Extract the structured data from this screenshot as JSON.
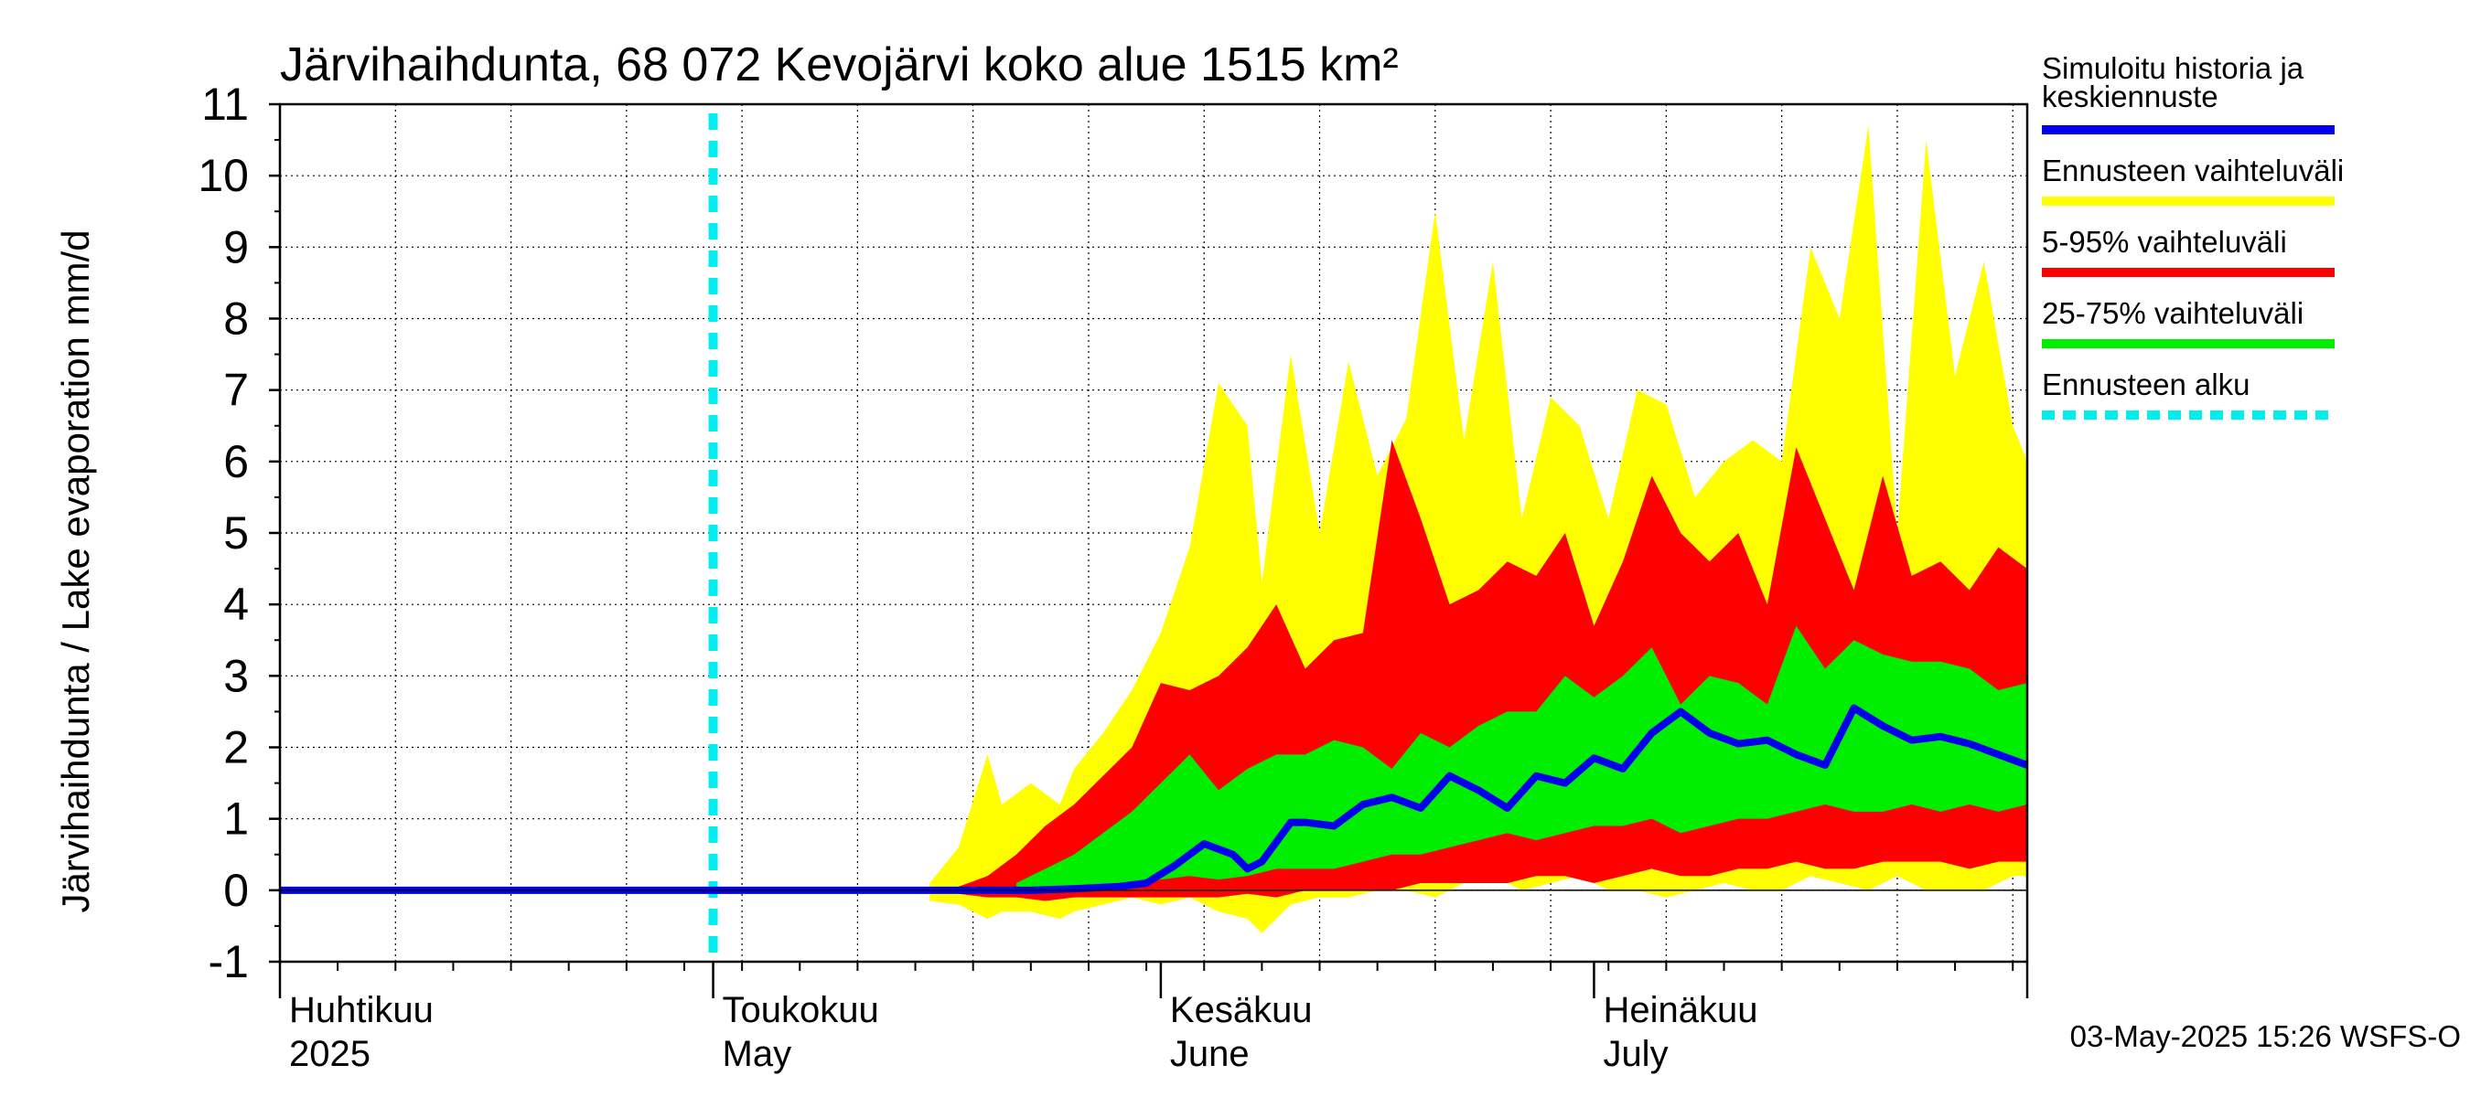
{
  "chart_data": {
    "type": "area",
    "title": "Järvihaihdunta, 68 072 Kevojärvi koko alue 1515 km²",
    "ylabel": "Järvihaihdunta / Lake evaporation   mm/d",
    "xlabel": "",
    "ylim": [
      -1,
      11
    ],
    "yticks": [
      -1,
      0,
      1,
      2,
      3,
      4,
      5,
      6,
      7,
      8,
      9,
      10,
      11
    ],
    "grid": true,
    "x_start": "2025-04-01",
    "x_end": "2025-07-31",
    "x_unit": "day of year 2025",
    "x_range": [
      91,
      212
    ],
    "forecast_start_doy": 121,
    "month_ticks": [
      {
        "doy": 91,
        "fi": "Huhtikuu",
        "en": "2025"
      },
      {
        "doy": 121,
        "fi": "Toukokuu",
        "en": "May"
      },
      {
        "doy": 152,
        "fi": "Kesäkuu",
        "en": "June"
      },
      {
        "doy": 182,
        "fi": "Heinäkuu",
        "en": "July"
      }
    ],
    "legend": [
      {
        "label": "Simuloitu historia ja keskiennuste",
        "line1": "Simuloitu historia ja",
        "line2": "keskiennuste",
        "color": "#0000ee",
        "style": "solid"
      },
      {
        "label": "Ennusteen vaihteluväli",
        "color": "#ffff00",
        "style": "solid"
      },
      {
        "label": "5-95% vaihteluväli",
        "color": "#ff0000",
        "style": "solid"
      },
      {
        "label": "25-75% vaihteluväli",
        "color": "#00ee00",
        "style": "solid"
      },
      {
        "label": "Ennusteen alku",
        "color": "#00eeee",
        "style": "dashed"
      }
    ],
    "series": [
      {
        "name": "Ennusteen vaihteluväli",
        "color": "#ffff00",
        "doy": [
          136,
          138,
          140,
          141,
          143,
          145,
          146,
          148,
          150,
          152,
          154,
          156,
          158,
          159,
          161,
          163,
          165,
          167,
          169,
          171,
          173,
          175,
          177,
          179,
          181,
          183,
          185,
          187,
          189,
          191,
          193,
          195,
          197,
          199,
          201,
          203,
          205,
          207,
          209,
          211,
          212
        ],
        "upper": [
          0.1,
          0.6,
          1.9,
          1.2,
          1.5,
          1.2,
          1.7,
          2.2,
          2.8,
          3.6,
          4.8,
          7.1,
          6.5,
          4.3,
          7.5,
          5.0,
          7.4,
          5.8,
          6.6,
          9.5,
          6.3,
          8.8,
          5.2,
          6.9,
          6.5,
          5.2,
          7.0,
          6.8,
          5.5,
          6.0,
          6.3,
          6.0,
          9.0,
          8.0,
          10.7,
          5.0,
          10.5,
          7.2,
          8.8,
          6.5,
          6.0
        ],
        "lower": [
          -0.15,
          -0.2,
          -0.4,
          -0.3,
          -0.3,
          -0.4,
          -0.3,
          -0.2,
          -0.1,
          -0.2,
          -0.1,
          -0.3,
          -0.4,
          -0.6,
          -0.2,
          -0.1,
          -0.1,
          0.0,
          0.0,
          -0.1,
          0.1,
          0.2,
          0.0,
          0.1,
          0.2,
          0.0,
          0.0,
          -0.1,
          0.0,
          0.1,
          0.0,
          0.0,
          0.2,
          0.1,
          0.0,
          0.2,
          0.0,
          0.0,
          0.0,
          0.2,
          0.2
        ]
      },
      {
        "name": "5-95% vaihteluväli",
        "color": "#ff0000",
        "doy": [
          138,
          140,
          142,
          144,
          146,
          148,
          150,
          152,
          154,
          156,
          158,
          160,
          162,
          164,
          166,
          168,
          170,
          172,
          174,
          176,
          178,
          180,
          182,
          184,
          186,
          188,
          190,
          192,
          194,
          196,
          198,
          200,
          202,
          204,
          206,
          208,
          210,
          212
        ],
        "upper": [
          0.05,
          0.2,
          0.5,
          0.9,
          1.2,
          1.6,
          2.0,
          2.9,
          2.8,
          3.0,
          3.4,
          4.0,
          3.1,
          3.5,
          3.6,
          6.3,
          5.2,
          4.0,
          4.2,
          4.6,
          4.4,
          5.0,
          3.7,
          4.6,
          5.8,
          5.0,
          4.6,
          5.0,
          4.0,
          6.2,
          5.2,
          4.2,
          5.8,
          4.4,
          4.6,
          4.2,
          4.8,
          4.5
        ],
        "lower": [
          -0.05,
          -0.1,
          -0.1,
          -0.15,
          -0.1,
          -0.1,
          -0.1,
          -0.1,
          -0.1,
          -0.1,
          -0.05,
          -0.1,
          0.0,
          0.0,
          0.0,
          0.0,
          0.1,
          0.1,
          0.1,
          0.1,
          0.2,
          0.2,
          0.1,
          0.2,
          0.3,
          0.2,
          0.2,
          0.3,
          0.3,
          0.4,
          0.3,
          0.3,
          0.4,
          0.4,
          0.4,
          0.3,
          0.4,
          0.4
        ]
      },
      {
        "name": "25-75% vaihteluväli",
        "color": "#00ee00",
        "doy": [
          142,
          144,
          146,
          148,
          150,
          152,
          154,
          156,
          158,
          160,
          162,
          164,
          166,
          168,
          170,
          172,
          174,
          176,
          178,
          180,
          182,
          184,
          186,
          188,
          190,
          192,
          194,
          196,
          198,
          200,
          202,
          204,
          206,
          208,
          210,
          212
        ],
        "upper": [
          0.1,
          0.3,
          0.5,
          0.8,
          1.1,
          1.5,
          1.9,
          1.4,
          1.7,
          1.9,
          1.9,
          2.1,
          2.0,
          1.7,
          2.2,
          2.0,
          2.3,
          2.5,
          2.5,
          3.0,
          2.7,
          3.0,
          3.4,
          2.6,
          3.0,
          2.9,
          2.6,
          3.7,
          3.1,
          3.5,
          3.3,
          3.2,
          3.2,
          3.1,
          2.8,
          2.9
        ],
        "lower": [
          0.0,
          0.0,
          0.0,
          0.05,
          0.1,
          0.15,
          0.2,
          0.15,
          0.2,
          0.3,
          0.3,
          0.3,
          0.4,
          0.5,
          0.5,
          0.6,
          0.7,
          0.8,
          0.7,
          0.8,
          0.9,
          0.9,
          1.0,
          0.8,
          0.9,
          1.0,
          1.0,
          1.1,
          1.2,
          1.1,
          1.1,
          1.2,
          1.1,
          1.2,
          1.1,
          1.2
        ]
      },
      {
        "name": "Simuloitu historia ja keskiennuste",
        "color": "#0000ee",
        "doy": [
          91,
          100,
          110,
          120,
          130,
          135,
          140,
          143,
          146,
          149,
          151,
          153,
          155,
          157,
          158,
          159,
          161,
          162,
          164,
          166,
          168,
          170,
          172,
          174,
          176,
          178,
          180,
          182,
          184,
          186,
          188,
          190,
          192,
          194,
          196,
          198,
          200,
          202,
          204,
          206,
          208,
          210,
          212
        ],
        "values": [
          0.0,
          0.0,
          0.0,
          0.0,
          0.0,
          0.0,
          0.0,
          0.0,
          0.02,
          0.05,
          0.1,
          0.35,
          0.65,
          0.5,
          0.3,
          0.4,
          0.95,
          0.95,
          0.9,
          1.2,
          1.3,
          1.15,
          1.6,
          1.4,
          1.15,
          1.6,
          1.5,
          1.85,
          1.7,
          2.2,
          2.5,
          2.2,
          2.05,
          2.1,
          1.9,
          1.75,
          2.55,
          2.3,
          2.1,
          2.15,
          2.05,
          1.9,
          1.75
        ]
      }
    ]
  },
  "footer": {
    "timestamp": "03-May-2025 15:26 WSFS-O"
  }
}
